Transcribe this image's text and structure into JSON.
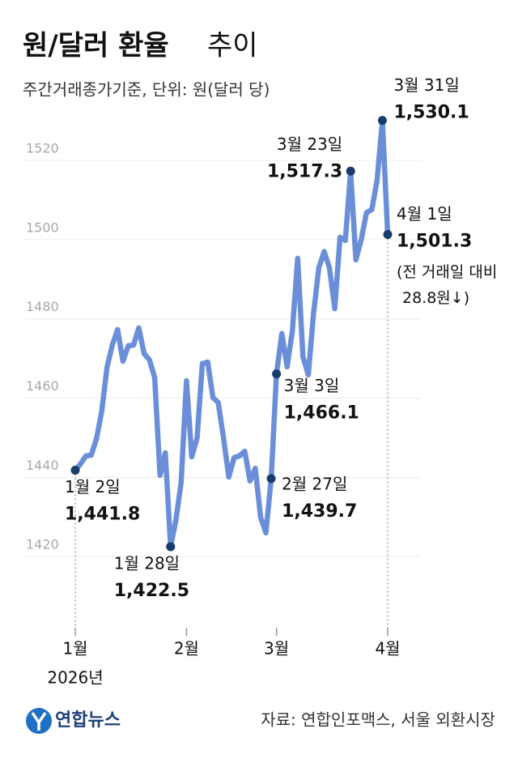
{
  "chart_data": {
    "type": "line",
    "title": "원/달러 환율",
    "title_suffix": "추이",
    "subtitle": "주간거래종가기준, 단위: 원(달러 당)",
    "categories": [
      "1월",
      null,
      null,
      null,
      null,
      null,
      null,
      null,
      null,
      null,
      null,
      null,
      null,
      null,
      null,
      null,
      null,
      null,
      null,
      null,
      null,
      "2월",
      null,
      null,
      null,
      null,
      null,
      null,
      null,
      null,
      null,
      null,
      null,
      null,
      null,
      null,
      null,
      null,
      "3월",
      null,
      null,
      null,
      null,
      null,
      null,
      null,
      null,
      null,
      null,
      null,
      null,
      null,
      null,
      null,
      null,
      null,
      null,
      null,
      null,
      "4월"
    ],
    "x_sublabel": "2026년",
    "values": [
      1441.8,
      1443.4,
      1445.4,
      1445.6,
      1449.7,
      1456.7,
      1467.9,
      1473.4,
      1477.3,
      1469.3,
      1473.2,
      1473.4,
      1477.7,
      1471.2,
      1469.7,
      1465.2,
      1440.5,
      1446.2,
      1422.5,
      1429.2,
      1438.7,
      1464.4,
      1445.2,
      1449.9,
      1468.7,
      1469.1,
      1460.1,
      1458.9,
      1449.9,
      1440.1,
      1445.0,
      1445.4,
      1446.6,
      1439.1,
      1442.3,
      1429.9,
      1426.0,
      1439.7,
      1466.1,
      1476.3,
      1467.9,
      1476.9,
      1495.3,
      1470.4,
      1465.9,
      1481.4,
      1492.9,
      1497.0,
      1492.9,
      1482.6,
      1500.6,
      1499.8,
      1517.3,
      1494.9,
      1500.0,
      1506.8,
      1507.6,
      1515.0,
      1530.1,
      1501.3
    ],
    "point_labels": [
      "1월 2일",
      null,
      null,
      null,
      null,
      null,
      null,
      null,
      null,
      null,
      null,
      null,
      null,
      null,
      null,
      null,
      null,
      null,
      "1월 28일",
      null,
      null,
      null,
      null,
      null,
      null,
      null,
      null,
      null,
      null,
      null,
      null,
      null,
      null,
      null,
      null,
      null,
      null,
      "2월 27일",
      "3월 3일",
      null,
      null,
      null,
      null,
      null,
      null,
      null,
      null,
      null,
      null,
      null,
      null,
      null,
      "3월 23일",
      null,
      null,
      null,
      null,
      null,
      "3월 31일",
      "4월 1일"
    ],
    "value_labels": [
      "1,441.8",
      null,
      null,
      null,
      null,
      null,
      null,
      null,
      null,
      null,
      null,
      null,
      null,
      null,
      null,
      null,
      null,
      null,
      "1,422.5",
      null,
      null,
      null,
      null,
      null,
      null,
      null,
      null,
      null,
      null,
      null,
      null,
      null,
      null,
      null,
      null,
      null,
      null,
      "1,439.7",
      "1,466.1",
      null,
      null,
      null,
      null,
      null,
      null,
      null,
      null,
      null,
      null,
      null,
      null,
      null,
      "1,517.3",
      null,
      null,
      null,
      null,
      null,
      "1,530.1",
      "1,501.3"
    ],
    "note": [
      "(전 거래일 대비",
      "28.8원↓)"
    ],
    "color": "#6a8fd8",
    "marker_color": "#173d6b",
    "ylim": [
      1400,
      1538
    ],
    "yticks": [
      1420,
      1440,
      1460,
      1480,
      1500,
      1520
    ],
    "grid": true,
    "source": "자료: 연합인포맥스, 서울 외환시장",
    "logo": "연합뉴스"
  }
}
